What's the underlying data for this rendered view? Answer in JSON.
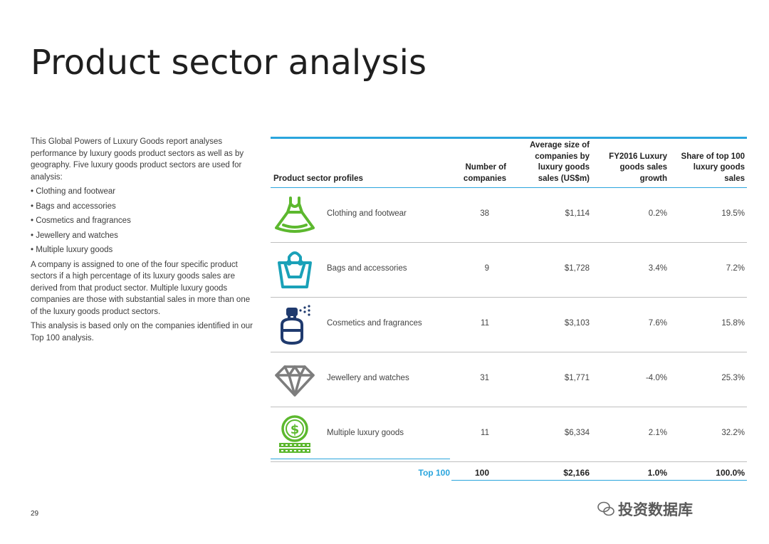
{
  "page_title": "Product sector analysis",
  "intro": {
    "para1": "This Global Powers of Luxury Goods report analyses performance by luxury goods product sectors as well as by geography. Five luxury goods product sectors are used for analysis:",
    "bullets": [
      "Clothing and footwear",
      "Bags and accessories",
      "Cosmetics and fragrances",
      "Jewellery and watches",
      "Multiple luxury goods"
    ],
    "para2": "A company is assigned to one of the four specific product sectors if a high percentage of its luxury goods sales are derived from that product sector. Multiple luxury goods companies are those with substantial sales in more than one of the luxury goods product sectors.",
    "para3": "This analysis is based only on the companies identified in our Top 100 analysis."
  },
  "table": {
    "headers": {
      "profile": "Product sector profiles",
      "number": "Number of companies",
      "avg_size": "Average size of companies by luxury goods sales (US$m)",
      "growth": "FY2016 Luxury goods sales growth",
      "share": "Share of top 100 luxury goods sales"
    },
    "rows": [
      {
        "icon": "dress-icon",
        "label": "Clothing and footwear",
        "number": "38",
        "avg_size": "$1,114",
        "growth": "0.2%",
        "share": "19.5%",
        "color": "#5cb82e"
      },
      {
        "icon": "handbag-icon",
        "label": "Bags and accessories",
        "number": "9",
        "avg_size": "$1,728",
        "growth": "3.4%",
        "share": "7.2%",
        "color": "#1aa1b8"
      },
      {
        "icon": "perfume-icon",
        "label": "Cosmetics and fragrances",
        "number": "11",
        "avg_size": "$3,103",
        "growth": "7.6%",
        "share": "15.8%",
        "color": "#1f3a6e"
      },
      {
        "icon": "diamond-icon",
        "label": "Jewellery and watches",
        "number": "31",
        "avg_size": "$1,771",
        "growth": "-4.0%",
        "share": "25.3%",
        "color": "#7d7d7d"
      },
      {
        "icon": "money-icon",
        "label": "Multiple luxury goods",
        "number": "11",
        "avg_size": "$6,334",
        "growth": "2.1%",
        "share": "32.2%",
        "color": "#5cb82e"
      }
    ],
    "total": {
      "label": "Top 100",
      "number": "100",
      "avg_size": "$2,166",
      "growth": "1.0%",
      "share": "100.0%"
    }
  },
  "page_number": "29",
  "watermark": "投资数据库",
  "colors": {
    "accent": "#2aa5dd",
    "green": "#5cb82e",
    "teal": "#1aa1b8",
    "navy": "#1f3a6e",
    "grey": "#7d7d7d"
  }
}
